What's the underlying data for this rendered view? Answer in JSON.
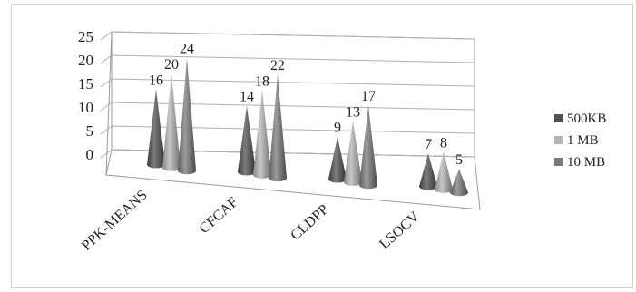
{
  "chart_data": {
    "type": "bar",
    "style": "3d-cone",
    "categories": [
      "PPK-MEANS",
      "CFCAF",
      "CLDPP",
      "LSOCV"
    ],
    "series": [
      {
        "name": "500KB",
        "values": [
          16,
          14,
          9,
          7
        ],
        "color": "#505050"
      },
      {
        "name": "1 MB",
        "values": [
          20,
          18,
          13,
          8
        ],
        "color": "#b4b4b4"
      },
      {
        "name": "10 MB",
        "values": [
          24,
          22,
          17,
          5
        ],
        "color": "#7a7a7a"
      }
    ],
    "yticks": [
      0,
      5,
      10,
      15,
      20,
      25
    ],
    "ylim": [
      0,
      25
    ],
    "title": "",
    "xlabel": "",
    "ylabel": "",
    "grid": true,
    "legend_position": "right"
  }
}
